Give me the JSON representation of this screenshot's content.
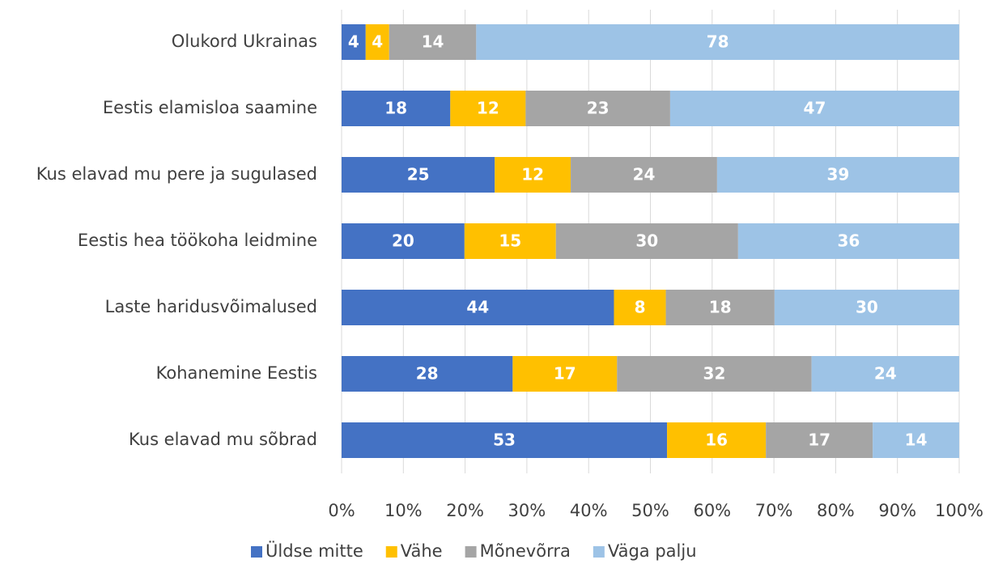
{
  "chart_data": {
    "type": "stacked_barh",
    "categories": [
      "Olukord Ukrainas",
      "Eestis elamisloa saamine",
      "Kus elavad mu pere ja sugulased",
      "Eestis hea töökoha leidmine",
      "Laste haridusvõimalused",
      "Kohanemine Eestis",
      "Kus elavad mu sõbrad"
    ],
    "series": [
      {
        "name": "Üldse mitte",
        "color": "#4472c4",
        "values": [
          3.9,
          17.6,
          24.8,
          19.9,
          44.1,
          27.7,
          52.7
        ],
        "value_labels": [
          "4",
          "18",
          "25",
          "20",
          "44",
          "28",
          "53"
        ]
      },
      {
        "name": "Vähe",
        "color": "#ffc000",
        "values": [
          3.8,
          12.2,
          12.3,
          14.8,
          8.4,
          16.9,
          16.0
        ],
        "value_labels": [
          "4",
          "12",
          "12",
          "15",
          "8",
          "17",
          "16"
        ]
      },
      {
        "name": "Mõnevõrra",
        "color": "#a5a5a5",
        "values": [
          14.1,
          23.4,
          23.7,
          29.5,
          17.6,
          31.5,
          17.3
        ],
        "value_labels": [
          "14",
          "23",
          "24",
          "30",
          "18",
          "32",
          "17"
        ]
      },
      {
        "name": "Väga palju",
        "color": "#9dc3e6",
        "values": [
          78.2,
          46.8,
          39.2,
          35.8,
          29.9,
          23.9,
          14.0
        ],
        "value_labels": [
          "78",
          "47",
          "39",
          "36",
          "30",
          "24",
          "14"
        ]
      }
    ],
    "xlim": [
      0,
      100
    ],
    "xticks": [
      {
        "value": 0,
        "label": "0%"
      },
      {
        "value": 10,
        "label": "10%"
      },
      {
        "value": 20,
        "label": "20%"
      },
      {
        "value": 30,
        "label": "30%"
      },
      {
        "value": 40,
        "label": "40%"
      },
      {
        "value": 50,
        "label": "50%"
      },
      {
        "value": 60,
        "label": "60%"
      },
      {
        "value": 70,
        "label": "70%"
      },
      {
        "value": 80,
        "label": "80%"
      },
      {
        "value": 90,
        "label": "90%"
      },
      {
        "value": 100,
        "label": "100%"
      }
    ],
    "grid": true,
    "legend": "bottom"
  }
}
